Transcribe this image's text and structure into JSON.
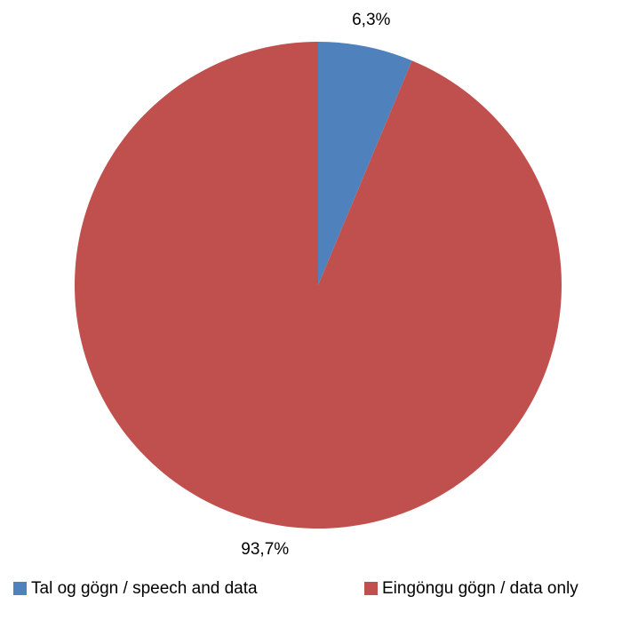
{
  "chart_data": {
    "type": "pie",
    "categories": [
      "Tal og gögn / speech and data",
      "Eingöngu gögn / data only"
    ],
    "values": [
      6.3,
      93.7
    ],
    "value_labels": [
      "6,3%",
      "93,7%"
    ],
    "colors": [
      "#4f81bd",
      "#c0504d"
    ],
    "legend": "bottom"
  }
}
